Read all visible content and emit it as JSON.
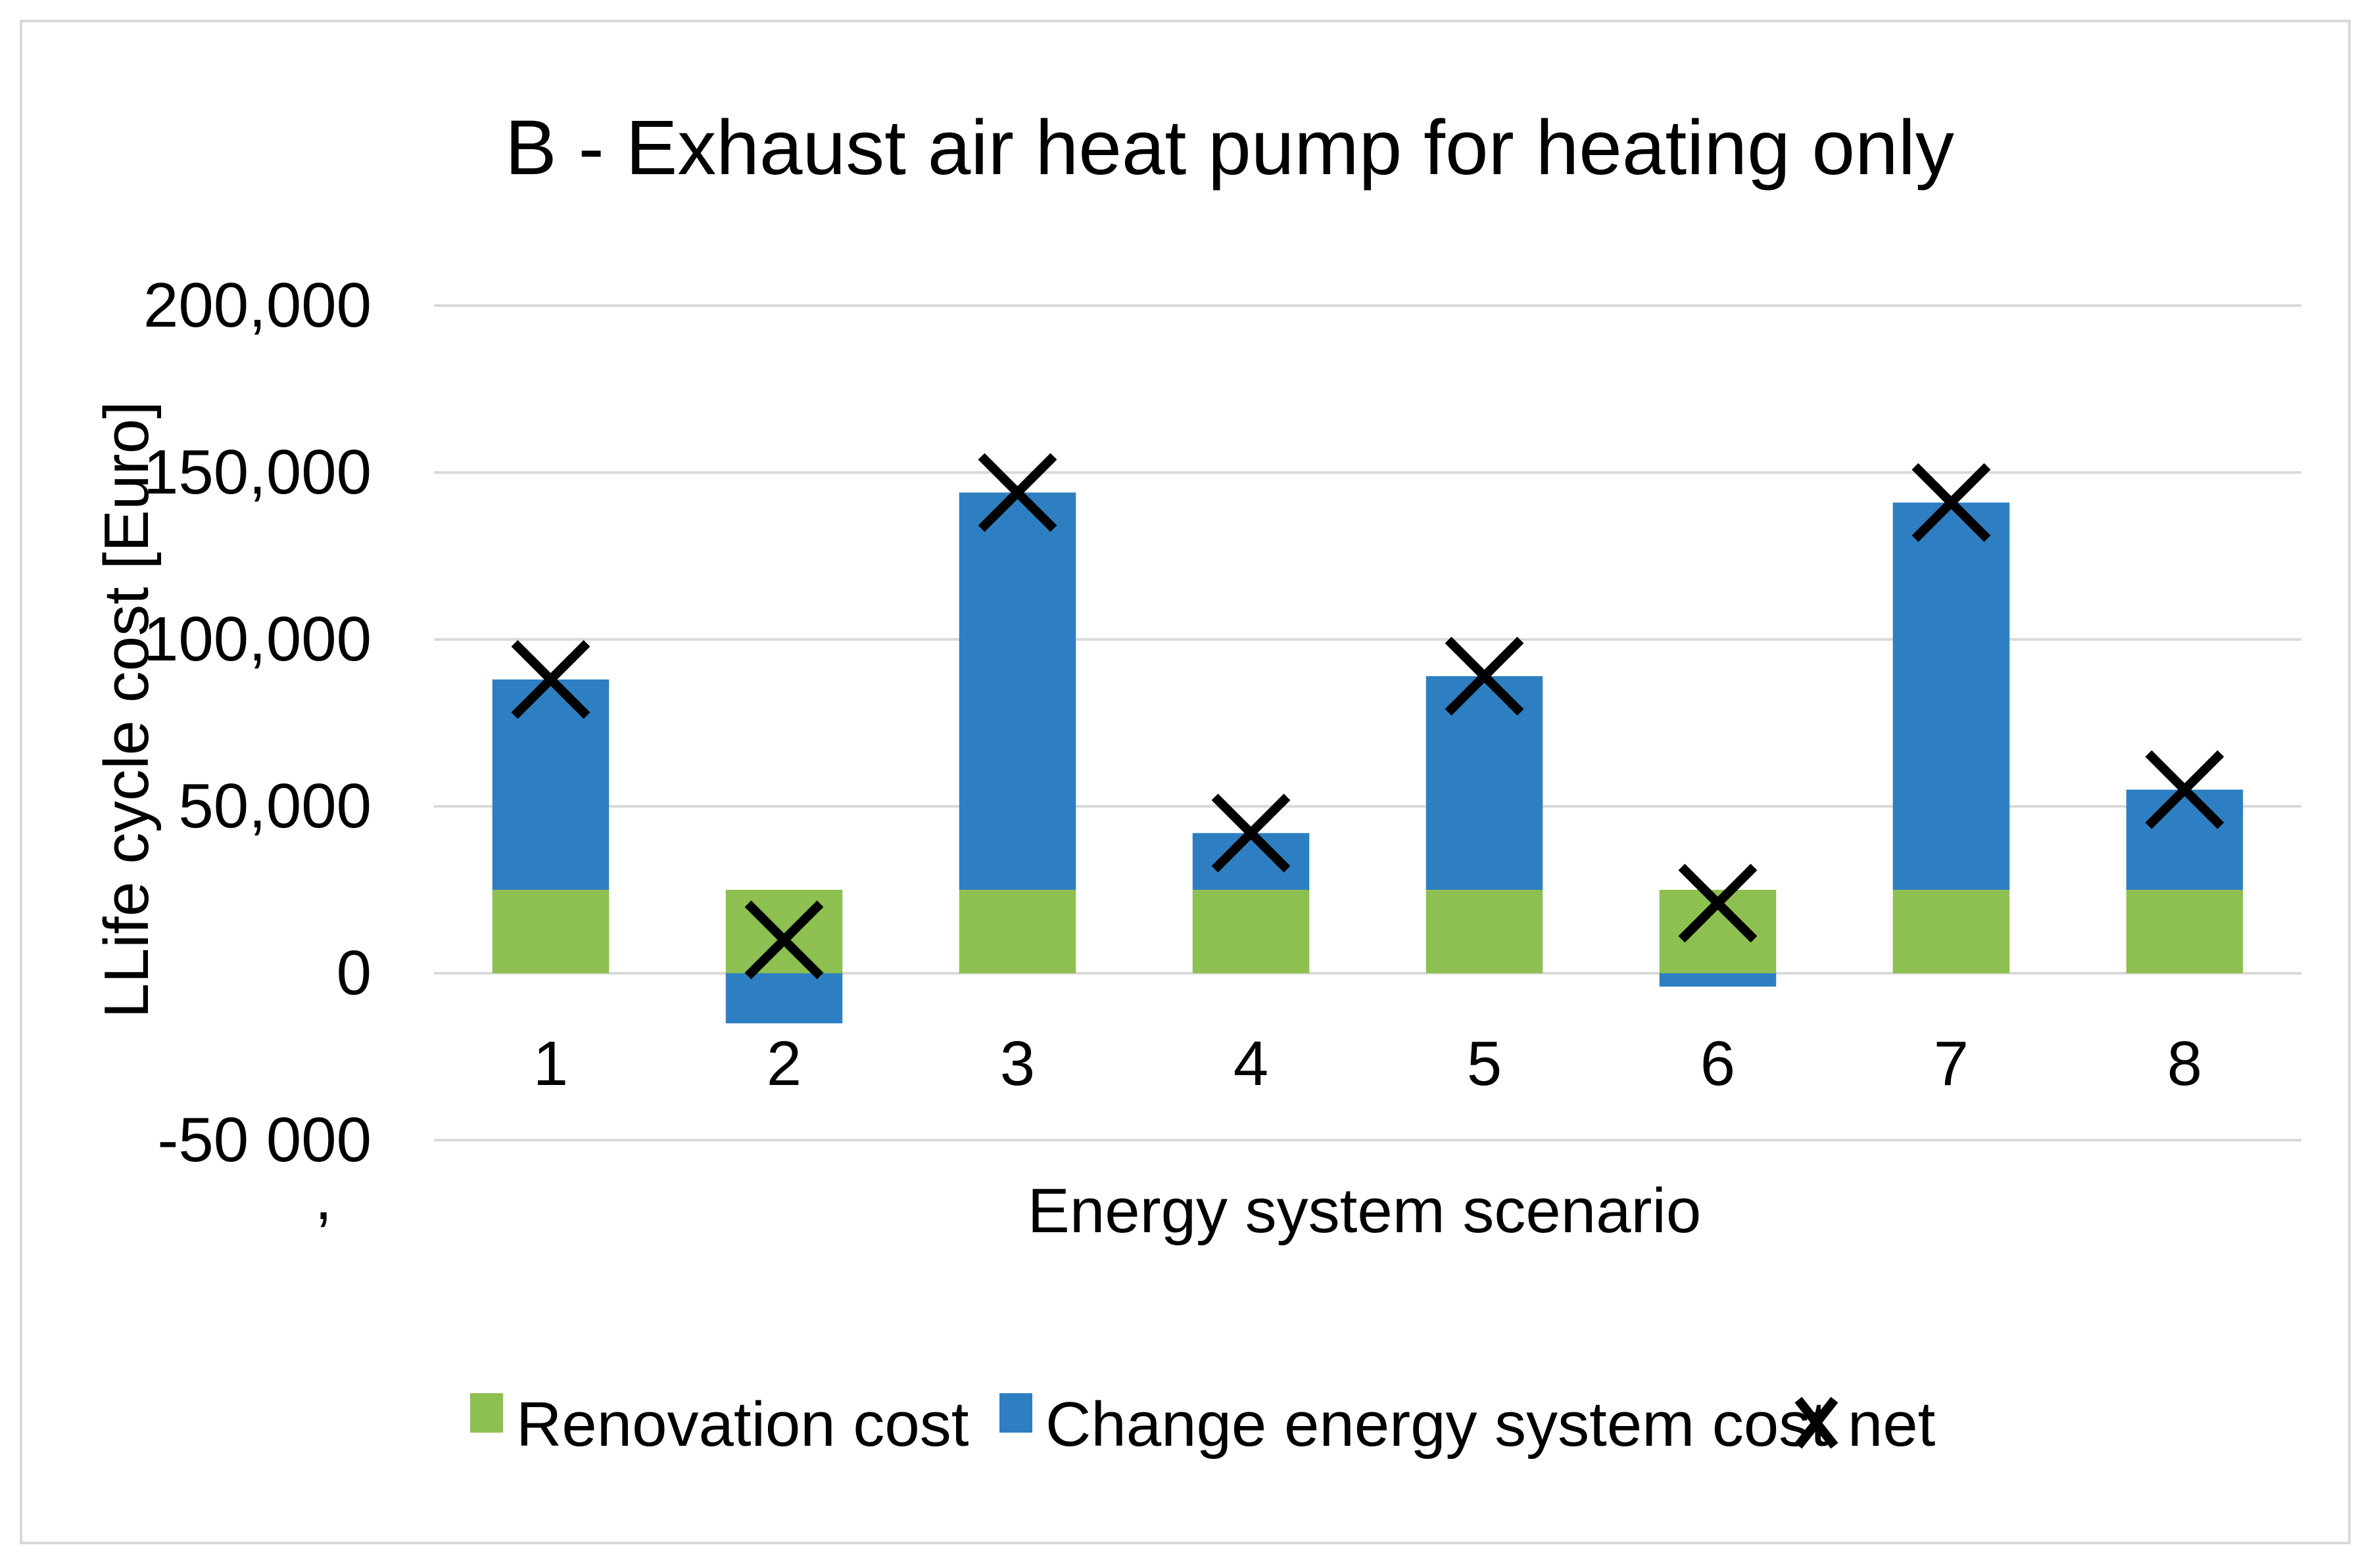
{
  "chart_data": {
    "type": "bar",
    "stacked": true,
    "title": "B - Exhaust air heat pump for heating only",
    "xlabel": "Energy system scenario",
    "ylabel": "LLife cycle cost [Euro]",
    "ylim": [
      -50000,
      200000
    ],
    "ytick_values": [
      -50000,
      0,
      50000,
      100000,
      150000,
      200000
    ],
    "ytick_labels": [
      "-50 000",
      "0",
      "50,000",
      "100,000",
      "150,000",
      "200,000"
    ],
    "ytick_stray_mark": ",",
    "grid": true,
    "legend_position": "bottom",
    "categories": [
      "1",
      "2",
      "3",
      "4",
      "5",
      "6",
      "7",
      "8"
    ],
    "series": [
      {
        "name": "Renovation cost",
        "color": "#8dc050",
        "values": [
          25000,
          25000,
          25000,
          25000,
          25000,
          25000,
          25000,
          25000
        ]
      },
      {
        "name": "Change energy system cost",
        "color": "#2e7fc1",
        "values": [
          63000,
          -15000,
          119000,
          17000,
          64000,
          -4000,
          116000,
          30000
        ]
      }
    ],
    "markers": {
      "name": "net",
      "color": "#000000",
      "values": [
        88000,
        10000,
        144000,
        42000,
        89000,
        21000,
        141000,
        55000
      ]
    }
  }
}
